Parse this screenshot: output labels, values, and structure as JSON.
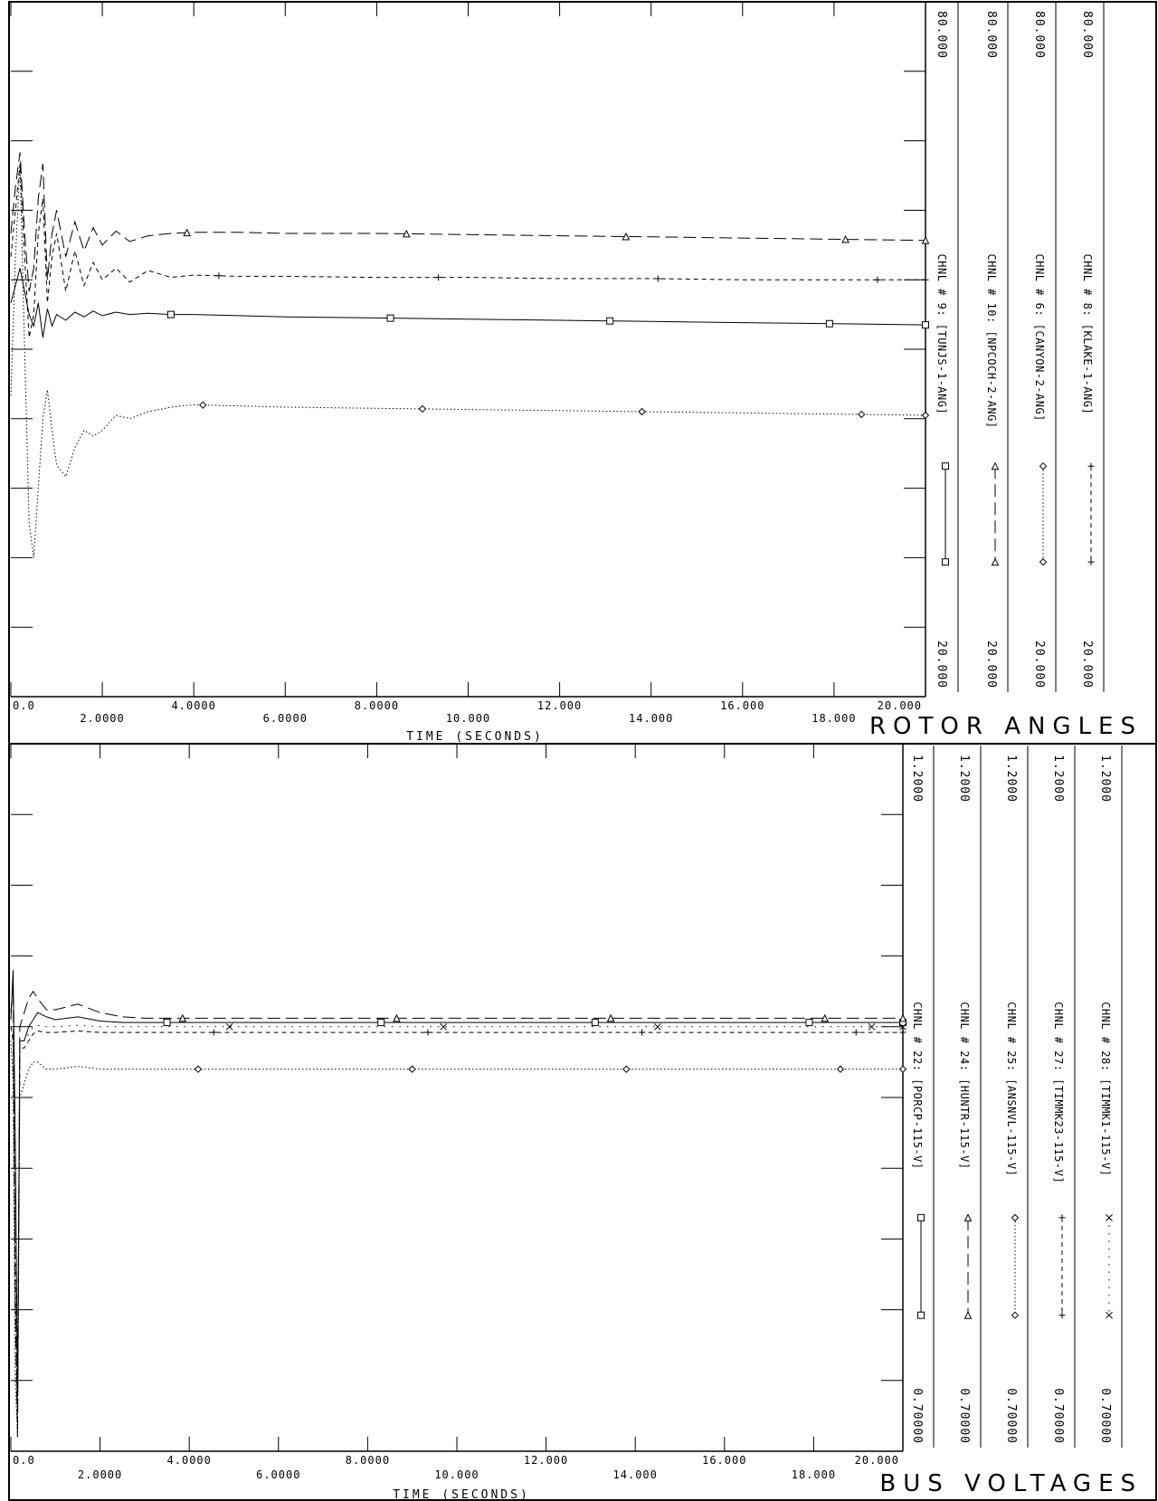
{
  "chart_data": [
    {
      "type": "line",
      "title": "ROTOR ANGLES",
      "xlabel": "TIME  (SECONDS)",
      "xlim": [
        0,
        20
      ],
      "x_ticks": [
        "0.0",
        "2.0000",
        "4.0000",
        "6.0000",
        "8.0000",
        "10.000",
        "12.000",
        "14.000",
        "16.000",
        "18.000",
        "20.000"
      ],
      "grid": false,
      "legend_placement": "right",
      "series": [
        {
          "name": "CHNL # 9: [TUNJS-1-ANG]",
          "scale_max": "80.000",
          "scale_min": "20.000",
          "ylim": [
            20,
            80
          ],
          "line_style": "solid",
          "marker": "square",
          "x": [
            0,
            0.1,
            0.2,
            0.3,
            0.4,
            0.5,
            0.6,
            0.7,
            0.8,
            0.9,
            1.0,
            1.2,
            1.4,
            1.6,
            1.8,
            2.0,
            2.3,
            2.6,
            3.0,
            3.5,
            4.0,
            5.0,
            6.0,
            8.0,
            10.0,
            12.0,
            14.0,
            16.0,
            18.0,
            20.0
          ],
          "y": [
            54.0,
            55.5,
            57.0,
            55.0,
            53.0,
            52.0,
            54.0,
            51.0,
            53.5,
            52.0,
            53.0,
            52.5,
            53.2,
            52.8,
            53.3,
            52.9,
            53.2,
            53.0,
            53.1,
            53.0,
            53.0,
            52.9,
            52.8,
            52.7,
            52.6,
            52.5,
            52.4,
            52.3,
            52.2,
            52.1
          ]
        },
        {
          "name": "CHNL # 10: [NPCOCH-2-ANG]",
          "scale_max": "80.000",
          "scale_min": "20.000",
          "ylim": [
            20,
            80
          ],
          "line_style": "long-dash",
          "marker": "triangle",
          "x": [
            0,
            0.1,
            0.2,
            0.3,
            0.4,
            0.5,
            0.6,
            0.7,
            0.8,
            0.9,
            1.0,
            1.2,
            1.4,
            1.6,
            1.8,
            2.0,
            2.3,
            2.6,
            3.0,
            3.5,
            4.0,
            5.0,
            6.0,
            8.0,
            10.0,
            12.0,
            14.0,
            16.0,
            18.0,
            20.0
          ],
          "y": [
            60.0,
            64.0,
            67.0,
            60.0,
            55.0,
            57.0,
            63.0,
            66.0,
            56.0,
            60.0,
            62.0,
            58.0,
            61.0,
            58.5,
            60.5,
            59.0,
            60.2,
            59.3,
            59.8,
            60.0,
            60.1,
            60.1,
            60.0,
            60.0,
            59.9,
            59.8,
            59.7,
            59.6,
            59.5,
            59.4
          ]
        },
        {
          "name": "CHNL # 6: [CANYON-2-ANG]",
          "scale_max": "80.000",
          "scale_min": "20.000",
          "ylim": [
            20,
            80
          ],
          "line_style": "dotted",
          "marker": "diamond",
          "x": [
            0,
            0.1,
            0.2,
            0.3,
            0.4,
            0.5,
            0.6,
            0.7,
            0.8,
            0.9,
            1.0,
            1.2,
            1.4,
            1.6,
            1.8,
            2.0,
            2.3,
            2.6,
            3.0,
            3.5,
            4.0,
            5.0,
            6.0,
            8.0,
            10.0,
            12.0,
            14.0,
            16.0,
            18.0,
            20.0
          ],
          "y": [
            46.0,
            58.0,
            66.0,
            50.0,
            35.0,
            32.0,
            38.0,
            44.0,
            46.5,
            43.0,
            40.0,
            39.0,
            41.5,
            43.0,
            42.5,
            43.0,
            44.3,
            44.0,
            44.6,
            45.0,
            45.2,
            45.1,
            45.0,
            44.9,
            44.8,
            44.7,
            44.6,
            44.5,
            44.4,
            44.3
          ]
        },
        {
          "name": "CHNL # 8: [KLAKE-1-ANG]",
          "scale_max": "80.000",
          "scale_min": "20.000",
          "ylim": [
            20,
            80
          ],
          "line_style": "short-dash",
          "marker": "plus",
          "x": [
            0,
            0.1,
            0.2,
            0.3,
            0.4,
            0.5,
            0.6,
            0.7,
            0.8,
            0.9,
            1.0,
            1.2,
            1.4,
            1.6,
            1.8,
            2.0,
            2.3,
            2.6,
            3.0,
            3.5,
            4.0,
            5.0,
            6.0,
            8.0,
            10.0,
            12.0,
            14.0,
            16.0,
            18.0,
            20.0
          ],
          "y": [
            58.0,
            62.0,
            66.0,
            58.0,
            51.0,
            53.0,
            60.0,
            63.0,
            54.0,
            58.0,
            60.0,
            55.0,
            58.5,
            55.5,
            57.5,
            56.0,
            57.0,
            55.8,
            56.8,
            56.2,
            56.4,
            56.3,
            56.3,
            56.2,
            56.2,
            56.1,
            56.1,
            56.0,
            56.0,
            56.0
          ]
        }
      ]
    },
    {
      "type": "line",
      "title": "BUS VOLTAGES",
      "xlabel": "TIME  (SECONDS)",
      "xlim": [
        0,
        20
      ],
      "x_ticks": [
        "0.0",
        "2.0000",
        "4.0000",
        "6.0000",
        "8.0000",
        "10.000",
        "12.000",
        "14.000",
        "16.000",
        "18.000",
        "20.000"
      ],
      "grid": false,
      "legend_placement": "right",
      "series": [
        {
          "name": "CHNL # 22: [PORCP-115-V]",
          "scale_max": "1.2000",
          "scale_min": "0.70000",
          "ylim": [
            0.7,
            1.2
          ],
          "line_style": "solid",
          "marker": "square",
          "x": [
            0,
            0.05,
            0.1,
            0.15,
            0.2,
            0.3,
            0.4,
            0.5,
            0.6,
            0.8,
            1.0,
            1.5,
            2.0,
            2.5,
            3.0,
            4.0,
            6.0,
            8.0,
            10.0,
            12.0,
            14.0,
            16.0,
            18.0,
            20.0
          ],
          "y": [
            1.005,
            1.04,
            0.92,
            0.74,
            0.99,
            0.99,
            1.0,
            1.005,
            1.01,
            1.007,
            1.005,
            1.007,
            1.004,
            1.003,
            1.003,
            1.003,
            1.003,
            1.003,
            1.003,
            1.003,
            1.003,
            1.003,
            1.003,
            1.003
          ]
        },
        {
          "name": "CHNL # 24: [HUNTR-115-V]",
          "scale_max": "1.2000",
          "scale_min": "0.70000",
          "ylim": [
            0.7,
            1.2
          ],
          "line_style": "long-dash",
          "marker": "triangle",
          "x": [
            0,
            0.05,
            0.1,
            0.15,
            0.2,
            0.3,
            0.4,
            0.5,
            0.6,
            0.8,
            1.0,
            1.5,
            2.0,
            2.5,
            3.0,
            4.0,
            6.0,
            8.0,
            10.0,
            12.0,
            14.0,
            16.0,
            18.0,
            20.0
          ],
          "y": [
            1.01,
            1.03,
            0.8,
            0.71,
            1.0,
            1.01,
            1.02,
            1.025,
            1.02,
            1.012,
            1.012,
            1.016,
            1.01,
            1.007,
            1.006,
            1.006,
            1.006,
            1.006,
            1.006,
            1.006,
            1.006,
            1.006,
            1.006,
            1.006
          ]
        },
        {
          "name": "CHNL # 25: [ANSNVL-115-V]",
          "scale_max": "1.2000",
          "scale_min": "0.70000",
          "ylim": [
            0.7,
            1.2
          ],
          "line_style": "dotted",
          "marker": "diamond",
          "x": [
            0,
            0.05,
            0.1,
            0.15,
            0.2,
            0.3,
            0.4,
            0.5,
            0.6,
            0.8,
            1.0,
            1.5,
            2.0,
            2.5,
            3.0,
            4.0,
            6.0,
            8.0,
            10.0,
            12.0,
            14.0,
            16.0,
            18.0,
            20.0
          ],
          "y": [
            0.99,
            0.96,
            0.75,
            0.71,
            0.95,
            0.96,
            0.97,
            0.975,
            0.975,
            0.97,
            0.97,
            0.972,
            0.97,
            0.97,
            0.97,
            0.97,
            0.97,
            0.97,
            0.97,
            0.97,
            0.97,
            0.97,
            0.97,
            0.97
          ]
        },
        {
          "name": "CHNL # 27: [TIMMK23-115-V]",
          "scale_max": "1.2000",
          "scale_min": "0.70000",
          "ylim": [
            0.7,
            1.2
          ],
          "line_style": "short-dash",
          "marker": "plus",
          "x": [
            0,
            0.05,
            0.1,
            0.15,
            0.2,
            0.3,
            0.4,
            0.5,
            0.6,
            0.8,
            1.0,
            1.5,
            2.0,
            2.5,
            3.0,
            4.0,
            6.0,
            8.0,
            10.0,
            12.0,
            14.0,
            16.0,
            18.0,
            20.0
          ],
          "y": [
            1.0,
            0.99,
            0.82,
            0.72,
            0.985,
            0.985,
            0.99,
            0.995,
            0.997,
            0.996,
            0.996,
            0.997,
            0.996,
            0.996,
            0.996,
            0.996,
            0.996,
            0.996,
            0.996,
            0.996,
            0.996,
            0.996,
            0.996,
            0.996
          ]
        },
        {
          "name": "CHNL # 28: [TIMMK1-115-V]",
          "scale_max": "1.2000",
          "scale_min": "0.70000",
          "ylim": [
            0.7,
            1.2
          ],
          "line_style": "dot-spaced",
          "marker": "x",
          "x": [
            0,
            0.05,
            0.1,
            0.15,
            0.2,
            0.3,
            0.4,
            0.5,
            0.6,
            0.8,
            1.0,
            1.5,
            2.0,
            2.5,
            3.0,
            4.0,
            6.0,
            8.0,
            10.0,
            12.0,
            14.0,
            16.0,
            18.0,
            20.0
          ],
          "y": [
            1.0,
            0.995,
            0.86,
            0.73,
            0.99,
            0.99,
            0.995,
            1.0,
            1.001,
            1.0,
            1.0,
            1.001,
            1.0,
            1.0,
            1.0,
            1.0,
            1.0,
            1.0,
            1.0,
            1.0,
            1.0,
            1.0,
            1.0,
            1.0
          ]
        }
      ]
    }
  ]
}
